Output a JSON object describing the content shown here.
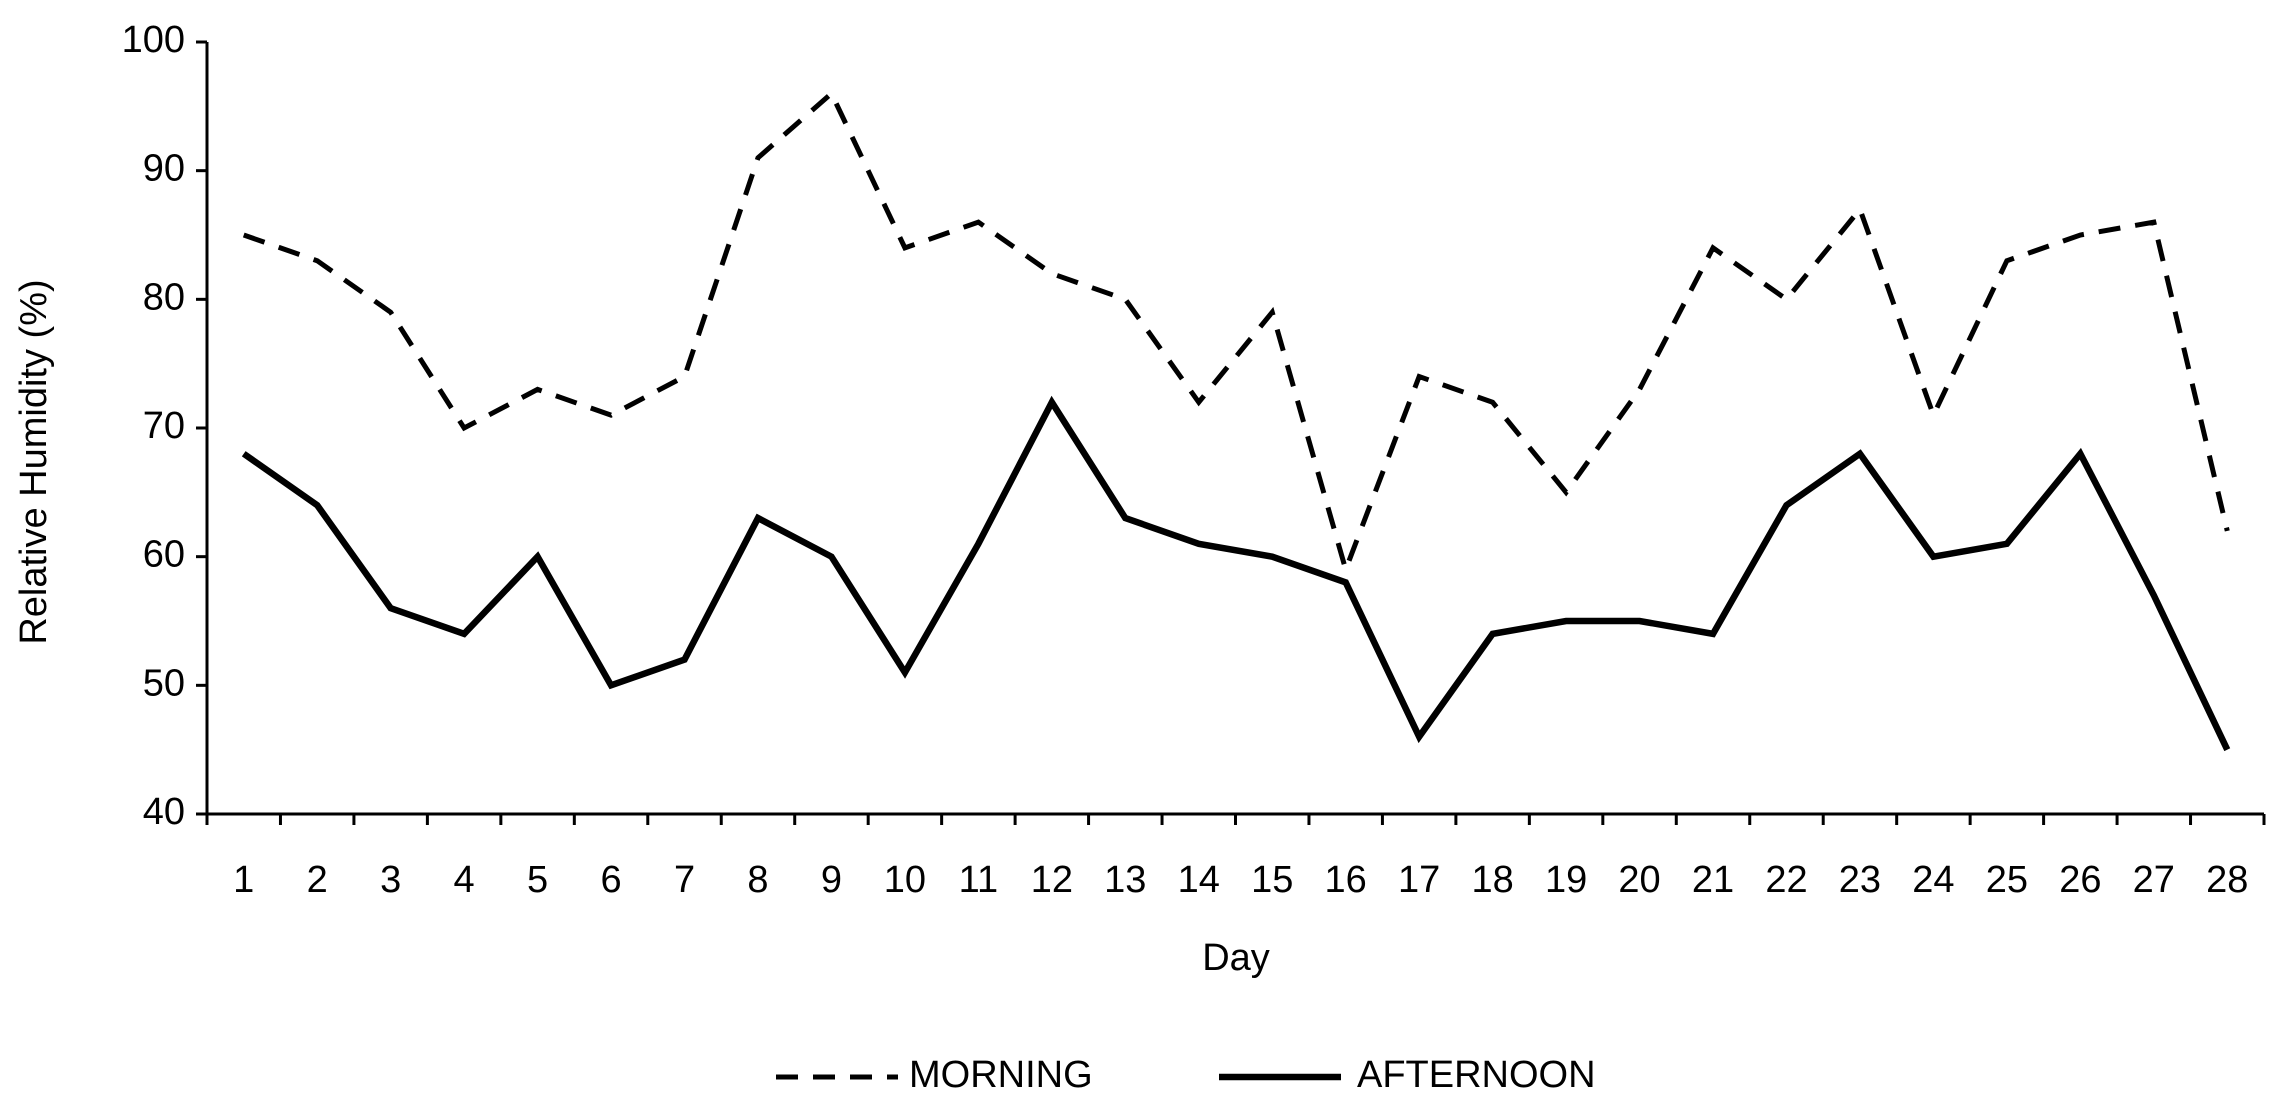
{
  "chart_data": {
    "type": "line",
    "x_label": "Day",
    "y_label": "Relative Humidity (%)",
    "categories": [
      "1",
      "2",
      "3",
      "4",
      "5",
      "6",
      "7",
      "8",
      "9",
      "10",
      "11",
      "12",
      "13",
      "14",
      "15",
      "16",
      "17",
      "18",
      "19",
      "20",
      "21",
      "22",
      "23",
      "24",
      "25",
      "26",
      "27",
      "28"
    ],
    "series": [
      {
        "name": "MORNING",
        "color": "#000000",
        "dash": "dashed",
        "values": [
          85,
          83,
          79,
          70,
          73,
          71,
          74,
          91,
          96,
          84,
          86,
          82,
          80,
          72,
          79,
          59,
          74,
          72,
          65,
          73,
          84,
          80,
          87,
          71,
          83,
          85,
          86,
          62
        ]
      },
      {
        "name": "AFTERNOON",
        "color": "#000000",
        "dash": "solid",
        "values": [
          68,
          64,
          56,
          54,
          60,
          50,
          52,
          63,
          60,
          51,
          61,
          72,
          63,
          61,
          60,
          58,
          46,
          54,
          55,
          55,
          54,
          64,
          68,
          60,
          61,
          68,
          57,
          45
        ]
      }
    ],
    "ylim": [
      40,
      100
    ],
    "yticks": [
      40,
      50,
      60,
      70,
      80,
      90,
      100
    ],
    "grid": false,
    "legend": "bottom"
  }
}
